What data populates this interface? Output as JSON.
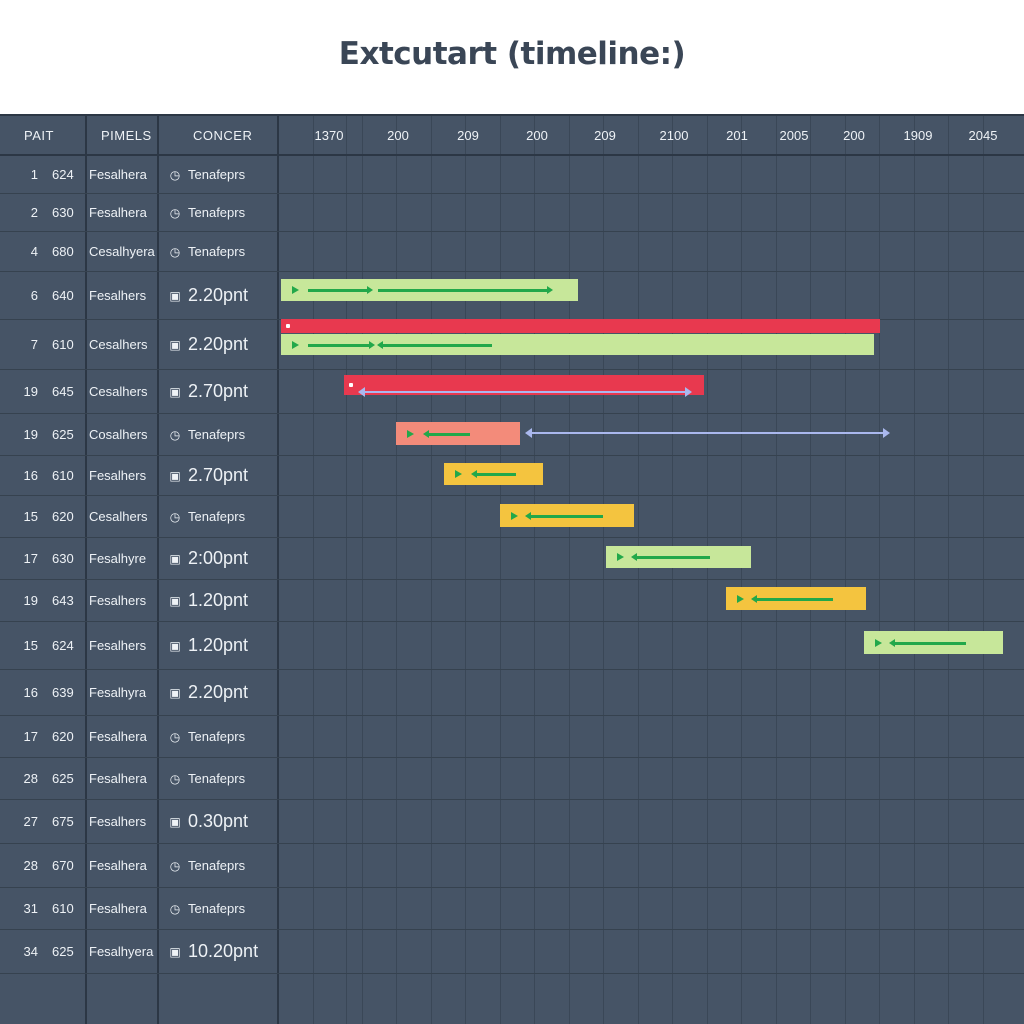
{
  "title": "Extcutart (timeline:)",
  "colors": {
    "background": "#465466",
    "red": "#e8394f",
    "lime": "#c7e79a",
    "yellow": "#f4c43f",
    "salmon": "#f38b7a",
    "arrow_green": "#22a84a",
    "link": "#aab8ee"
  },
  "columns": {
    "part": "PAIT",
    "pimels": "PIMELS",
    "concer": "CONCER"
  },
  "timeline": {
    "ticks": [
      "1370",
      "200",
      "209",
      "200",
      "209",
      "2100",
      "201",
      "2005",
      "200",
      "1909",
      "2045"
    ]
  },
  "rows": [
    {
      "num": "1",
      "code": "624",
      "name": "Fesalhera",
      "icon": "clock-icon",
      "value": "Tenafeprs"
    },
    {
      "num": "2",
      "code": "630",
      "name": "Fesalhera",
      "icon": "clock-icon",
      "value": "Tenafeprs"
    },
    {
      "num": "4",
      "code": "680",
      "name": "Cesalhyera",
      "icon": "clock-icon",
      "value": "Tenafeprs"
    },
    {
      "num": "6",
      "code": "640",
      "name": "Fesalhers",
      "icon": "calendar-icon",
      "value": "2.20pnt"
    },
    {
      "num": "7",
      "code": "610",
      "name": "Cesalhers",
      "icon": "calendar-icon",
      "value": "2.20pnt"
    },
    {
      "num": "19",
      "code": "645",
      "name": "Cesalhers",
      "icon": "calendar-icon",
      "value": "2.70pnt"
    },
    {
      "num": "19",
      "code": "625",
      "name": "Cosalhers",
      "icon": "clock-icon",
      "value": "Tenafeprs"
    },
    {
      "num": "16",
      "code": "610",
      "name": "Fesalhers",
      "icon": "calendar-icon",
      "value": "2.70pnt"
    },
    {
      "num": "15",
      "code": "620",
      "name": "Cesalhers",
      "icon": "clock-icon",
      "value": "Tenafeprs"
    },
    {
      "num": "17",
      "code": "630",
      "name": "Fesalhyre",
      "icon": "calendar-icon",
      "value": "2:00pnt"
    },
    {
      "num": "19",
      "code": "643",
      "name": "Fesalhers",
      "icon": "calendar-icon",
      "value": "1.20pnt"
    },
    {
      "num": "15",
      "code": "624",
      "name": "Fesalhers",
      "icon": "calendar-icon",
      "value": "1.20pnt"
    },
    {
      "num": "16",
      "code": "639",
      "name": "Fesalhyra",
      "icon": "calendar-icon",
      "value": "2.20pnt"
    },
    {
      "num": "17",
      "code": "620",
      "name": "Fesalhera",
      "icon": "clock-icon",
      "value": "Tenafeprs"
    },
    {
      "num": "28",
      "code": "625",
      "name": "Fesalhera",
      "icon": "clock-icon",
      "value": "Tenafeprs"
    },
    {
      "num": "27",
      "code": "675",
      "name": "Fesalhers",
      "icon": "calendar-icon",
      "value": "0.30pnt"
    },
    {
      "num": "28",
      "code": "670",
      "name": "Fesalhera",
      "icon": "clock-icon",
      "value": "Tenafeprs"
    },
    {
      "num": "31",
      "code": "610",
      "name": "Fesalhera",
      "icon": "clock-icon",
      "value": "Tenafeprs"
    },
    {
      "num": "34",
      "code": "625",
      "name": "Fesalhyera",
      "icon": "calendar-icon",
      "value": "10.20pnt"
    }
  ]
}
